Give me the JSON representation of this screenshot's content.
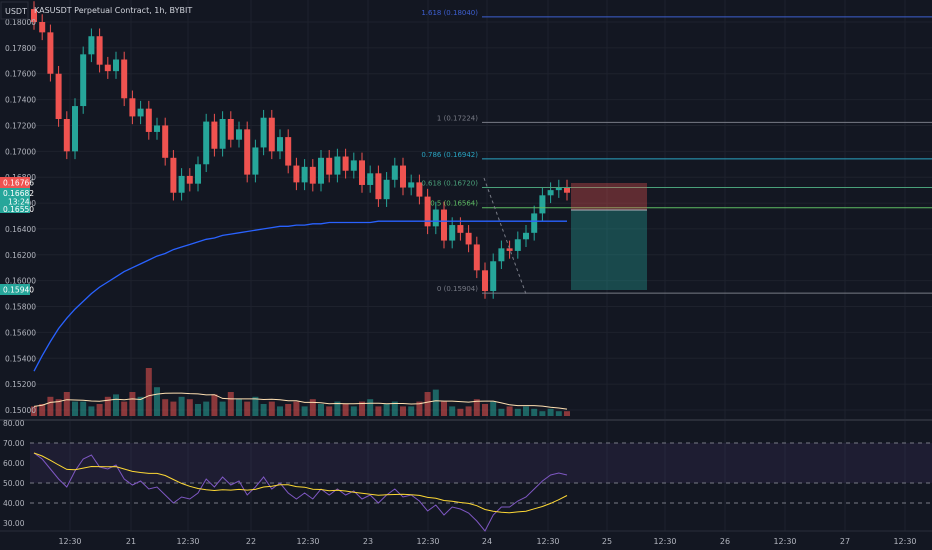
{
  "header": {
    "currency": "USDT",
    "symbol_text": "KASUSDT Perpetual Contract, 1h, BYBIT"
  },
  "price_axis": {
    "labels": [
      "0.18000",
      "0.17800",
      "0.17600",
      "0.17400",
      "0.17200",
      "0.17000",
      "0.16800",
      "0.16600",
      "0.16400",
      "0.16200",
      "0.16000",
      "0.15800",
      "0.15600",
      "0.15400",
      "0.15200",
      "0.15000"
    ],
    "badges": {
      "last_price": "0.16766",
      "mid_price": "0.16682",
      "countdown": "13:24",
      "ma_value": "0.16550",
      "low_marker": "0.15940"
    }
  },
  "rsi_axis": {
    "labels": [
      "80.00",
      "70.00",
      "60.00",
      "50.00",
      "40.00",
      "30.00"
    ]
  },
  "time_axis": {
    "labels": [
      "12:30",
      "21",
      "12:30",
      "22",
      "12:30",
      "23",
      "12:30",
      "24",
      "12:30",
      "25",
      "12:30",
      "26",
      "12:30",
      "27",
      "12:30"
    ]
  },
  "fib_levels": [
    {
      "label": "1.618 (0.18040)",
      "price": 0.1804,
      "color": "#3d5fd0"
    },
    {
      "label": "1 (0.17224)",
      "price": 0.17224,
      "color": "#787b86"
    },
    {
      "label": "0.786 (0.16942)",
      "price": 0.16942,
      "color": "#2aa4c2"
    },
    {
      "label": "0.618 (0.16720)",
      "price": 0.1672,
      "color": "#4aa07a"
    },
    {
      "label": "0.5 (0.16564)",
      "price": 0.16564,
      "color": "#5dbb63"
    },
    {
      "label": "0 (0.15904)",
      "price": 0.15904,
      "color": "#787b86"
    }
  ],
  "colors": {
    "background": "#131722",
    "up": "#26a69a",
    "down": "#ef5350",
    "ma": "#2962ff",
    "volume_ma": "#ffe0b2",
    "rsi_line": "#7e57c2",
    "rsi_ma": "#fdd835",
    "grid": "#1e222d",
    "axis_text": "#b2b5be"
  },
  "chart_data": {
    "type": "candlestick",
    "title": "KASUSDT Perpetual Contract, 1h, BYBIT",
    "ylim": [
      0.1495,
      0.1815
    ],
    "close": [
      0.18,
      0.1792,
      0.176,
      0.1725,
      0.17,
      0.1735,
      0.1775,
      0.1789,
      0.1767,
      0.1762,
      0.1771,
      0.1741,
      0.1727,
      0.1733,
      0.1715,
      0.172,
      0.1695,
      0.1668,
      0.1681,
      0.1675,
      0.169,
      0.1723,
      0.1702,
      0.1725,
      0.1709,
      0.1717,
      0.1682,
      0.1703,
      0.1726,
      0.17,
      0.1711,
      0.1689,
      0.1676,
      0.1688,
      0.1675,
      0.1695,
      0.1682,
      0.1696,
      0.1685,
      0.1693,
      0.1674,
      0.1683,
      0.1663,
      0.1678,
      0.1689,
      0.1672,
      0.1676,
      0.1665,
      0.1642,
      0.1655,
      0.1631,
      0.1643,
      0.1637,
      0.1628,
      0.1608,
      0.1592,
      0.1615,
      0.1625,
      0.1623,
      0.1632,
      0.1637,
      0.1652,
      0.1666,
      0.167,
      0.1672,
      0.1668
    ],
    "ma200": [
      0.153,
      0.1542,
      0.1553,
      0.1563,
      0.1571,
      0.1578,
      0.1584,
      0.159,
      0.1595,
      0.1599,
      0.1603,
      0.1607,
      0.161,
      0.1613,
      0.1616,
      0.1619,
      0.1621,
      0.1624,
      0.1626,
      0.1628,
      0.163,
      0.1632,
      0.1633,
      0.1635,
      0.1636,
      0.1637,
      0.1638,
      0.1639,
      0.164,
      0.1641,
      0.1642,
      0.1642,
      0.1643,
      0.1643,
      0.1644,
      0.1644,
      0.1645,
      0.1645,
      0.1645,
      0.1645,
      0.1645,
      0.1645,
      0.1646,
      0.1646,
      0.1646,
      0.1646,
      0.1646,
      0.1646,
      0.1646,
      0.1646,
      0.1646,
      0.1646,
      0.1646,
      0.1646,
      0.1646,
      0.1646,
      0.1646,
      0.1646,
      0.1646,
      0.1646,
      0.1646,
      0.1646,
      0.1646,
      0.1646,
      0.1646,
      0.1646
    ],
    "volume": [
      0.2,
      0.25,
      0.4,
      0.35,
      0.5,
      0.3,
      0.3,
      0.2,
      0.25,
      0.4,
      0.45,
      0.3,
      0.5,
      0.4,
      1.0,
      0.6,
      0.35,
      0.3,
      0.4,
      0.35,
      0.25,
      0.3,
      0.45,
      0.3,
      0.5,
      0.35,
      0.3,
      0.4,
      0.25,
      0.3,
      0.2,
      0.25,
      0.3,
      0.2,
      0.35,
      0.25,
      0.2,
      0.3,
      0.25,
      0.2,
      0.3,
      0.35,
      0.2,
      0.25,
      0.3,
      0.2,
      0.2,
      0.3,
      0.5,
      0.55,
      0.3,
      0.2,
      0.15,
      0.2,
      0.35,
      0.25,
      0.3,
      0.15,
      0.2,
      0.15,
      0.2,
      0.15,
      0.1,
      0.15,
      0.1,
      0.1
    ],
    "rsi": [
      65,
      62,
      57,
      52,
      48,
      56,
      62,
      64,
      58,
      57,
      59,
      52,
      49,
      51,
      47,
      48,
      44,
      40,
      43,
      42,
      45,
      52,
      48,
      53,
      49,
      51,
      44,
      48,
      53,
      47,
      50,
      45,
      42,
      45,
      42,
      47,
      44,
      47,
      44,
      46,
      42,
      44,
      40,
      44,
      47,
      43,
      44,
      41,
      36,
      39,
      34,
      38,
      37,
      35,
      31,
      26,
      34,
      38,
      38,
      41,
      43,
      47,
      51,
      54,
      55,
      54
    ]
  }
}
